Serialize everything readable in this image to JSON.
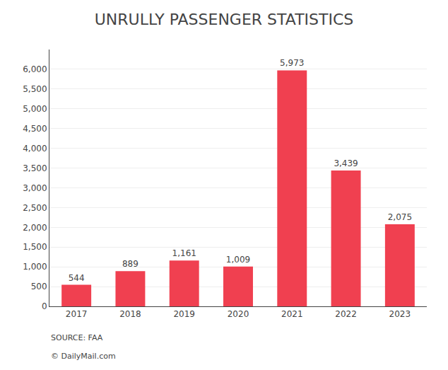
{
  "chart_data": {
    "type": "bar",
    "title": "UNRULLY PASSENGER STATISTICS",
    "categories": [
      "2017",
      "2018",
      "2019",
      "2020",
      "2021",
      "2022",
      "2023"
    ],
    "values": [
      544,
      889,
      1161,
      1009,
      5973,
      3439,
      2075
    ],
    "value_labels": [
      "544",
      "889",
      "1,161",
      "1,009",
      "5,973",
      "3,439",
      "2,075"
    ],
    "data_labels": true,
    "color": "#f04050",
    "ylim": [
      0,
      6500
    ],
    "yticks": [
      0,
      500,
      {
        "value": 1000,
        "label": "1,000"
      },
      {
        "value": 1500,
        "label": "1,500"
      },
      {
        "value": 2000,
        "label": "2,000"
      },
      {
        "value": 2500,
        "label": "2,500"
      },
      {
        "value": 3000,
        "label": "3,000"
      },
      {
        "value": 3500,
        "label": "3,500"
      },
      {
        "value": 4000,
        "label": "4,000"
      },
      {
        "value": 4500,
        "label": "4,500"
      },
      {
        "value": 5000,
        "label": "5,000"
      },
      {
        "value": 5500,
        "label": "5,500"
      },
      {
        "value": 6000,
        "label": "6,000"
      }
    ],
    "grid": true,
    "annotations": [
      "SOURCE: FAA",
      "© DailyMail.com"
    ]
  }
}
